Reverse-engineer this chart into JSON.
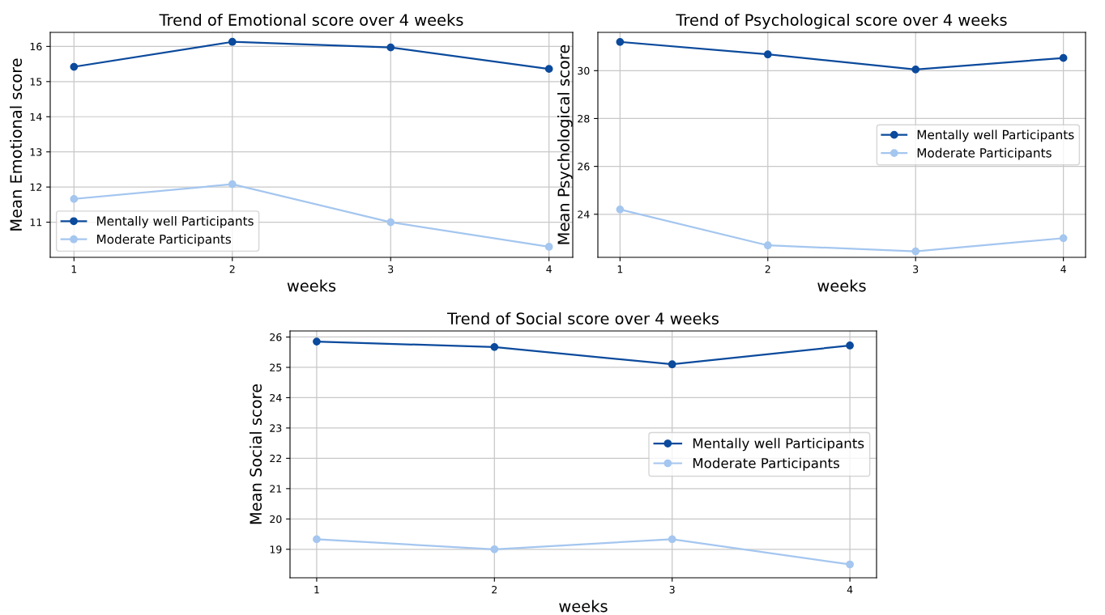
{
  "chart_data": [
    {
      "type": "line",
      "title": "Trend of Emotional score over 4 weeks",
      "xlabel": "weeks",
      "ylabel": "Mean Emotional score",
      "x": [
        1,
        2,
        3,
        4
      ],
      "xlim": [
        0.85,
        4.15
      ],
      "xticks": [
        1,
        2,
        3,
        4
      ],
      "ylim": [
        10.0,
        16.4
      ],
      "yticks": [
        11,
        12,
        13,
        14,
        15,
        16
      ],
      "grid": true,
      "legend": "bottom left",
      "marker": "circle",
      "line_style": "solid",
      "series": [
        {
          "name": "Mentally well Participants",
          "color": "#0b4a9c",
          "values": [
            15.42,
            16.13,
            15.97,
            15.36
          ]
        },
        {
          "name": "Moderate Participants",
          "color": "#a4c6ef",
          "values": [
            11.66,
            12.08,
            11.0,
            10.3
          ]
        }
      ]
    },
    {
      "type": "line",
      "title": "Trend of Psychological score over 4 weeks",
      "xlabel": "weeks",
      "ylabel": "Mean Psychological score",
      "x": [
        1,
        2,
        3,
        4
      ],
      "xlim": [
        0.85,
        4.15
      ],
      "xticks": [
        1,
        2,
        3,
        4
      ],
      "ylim": [
        22.2,
        31.6
      ],
      "yticks": [
        24,
        26,
        28,
        30
      ],
      "grid": true,
      "legend": "right",
      "marker": "circle",
      "line_style": "solid",
      "series": [
        {
          "name": "Mentally well Participants",
          "color": "#0b4a9c",
          "values": [
            31.2,
            30.68,
            30.05,
            30.53
          ]
        },
        {
          "name": "Moderate Participants",
          "color": "#a4c6ef",
          "values": [
            24.2,
            22.7,
            22.45,
            23.0
          ]
        }
      ]
    },
    {
      "type": "line",
      "title": "Trend of Social score over 4 weeks",
      "xlabel": "weeks",
      "ylabel": "Mean Social score",
      "x": [
        1,
        2,
        3,
        4
      ],
      "xlim": [
        0.85,
        4.15
      ],
      "xticks": [
        1,
        2,
        3,
        4
      ],
      "ylim": [
        18.06,
        26.2
      ],
      "yticks": [
        19,
        20,
        21,
        22,
        23,
        24,
        25,
        26
      ],
      "grid": true,
      "legend": "right",
      "marker": "circle",
      "line_style": "solid",
      "series": [
        {
          "name": "Mentally well Participants",
          "color": "#0b4a9c",
          "values": [
            25.85,
            25.67,
            25.1,
            25.72
          ]
        },
        {
          "name": "Moderate Participants",
          "color": "#a4c6ef",
          "values": [
            19.33,
            19.0,
            19.33,
            18.5
          ]
        }
      ]
    }
  ]
}
